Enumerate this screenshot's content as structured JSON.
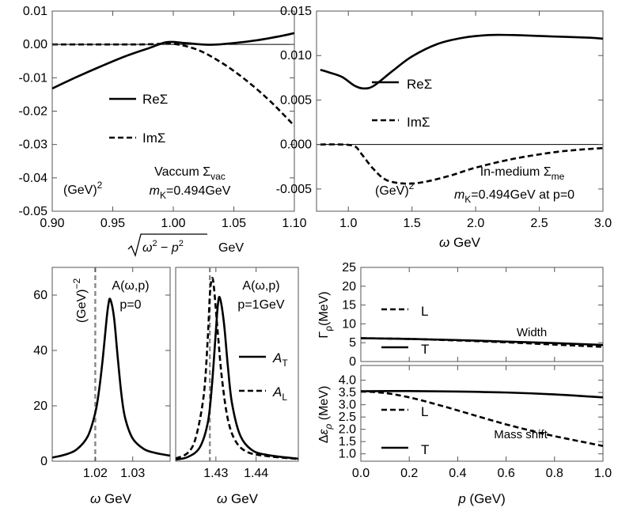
{
  "chart_data": [
    {
      "id": "vac",
      "type": "line",
      "xlim": [
        0.9,
        1.1
      ],
      "ylim": [
        -0.05,
        0.01
      ],
      "xticks": [
        "0.90",
        "0.95",
        "1.00",
        "1.05",
        "1.10"
      ],
      "xtick_values": [
        0.9,
        0.95,
        1.0,
        1.05,
        1.1
      ],
      "yticks": [
        "0.01",
        "0.00",
        "-0.01",
        "-0.02",
        "-0.03",
        "-0.04",
        "-0.05"
      ],
      "ytick_values": [
        0.01,
        0.0,
        -0.01,
        -0.02,
        -0.03,
        -0.04,
        -0.05
      ],
      "xlabel": "√(ω² − p²) GeV",
      "unit": "(GeV)²",
      "title": "Vaccum Σvac",
      "subtitle": "mK=0.494GeV",
      "legend": [
        "ReΣ",
        "ImΣ"
      ],
      "series": [
        {
          "name": "ReΣ",
          "style": "solid",
          "x": [
            0.9,
            0.92,
            0.94,
            0.96,
            0.98,
            0.995,
            1.01,
            1.03,
            1.05,
            1.07,
            1.09,
            1.1
          ],
          "y": [
            -0.0132,
            -0.0098,
            -0.0066,
            -0.0036,
            -0.0011,
            0.0007,
            0.0004,
            -0.0001,
            0.0004,
            0.0013,
            0.0026,
            0.0034
          ]
        },
        {
          "name": "ImΣ",
          "style": "dashed",
          "x": [
            0.9,
            0.94,
            0.97,
            0.985,
            1.0,
            1.02,
            1.04,
            1.06,
            1.08,
            1.1
          ],
          "y": [
            0.0,
            0.0,
            0.0,
            0.0001,
            0.0002,
            -0.0016,
            -0.0055,
            -0.0107,
            -0.017,
            -0.0244
          ]
        }
      ]
    },
    {
      "id": "me",
      "type": "line",
      "xlim": [
        0.75,
        3.0
      ],
      "ylim": [
        -0.0075,
        0.015
      ],
      "xticks": [
        "1.0",
        "1.5",
        "2.0",
        "2.5",
        "3.0"
      ],
      "xtick_values": [
        1.0,
        1.5,
        2.0,
        2.5,
        3.0
      ],
      "yticks": [
        "0.015",
        "0.010",
        "0.005",
        "0.000",
        "-0.005"
      ],
      "ytick_values": [
        0.015,
        0.01,
        0.005,
        0.0,
        -0.005
      ],
      "xlabel": "ω GeV",
      "unit": "(GeV)²",
      "title": "In-medium Σme",
      "subtitle": "mK=0.494GeV at p=0",
      "legend": [
        "ReΣ",
        "ImΣ"
      ],
      "series": [
        {
          "name": "ReΣ",
          "style": "solid",
          "x": [
            0.78,
            0.85,
            0.95,
            1.05,
            1.12,
            1.2,
            1.35,
            1.5,
            1.7,
            1.9,
            2.1,
            2.3,
            2.5,
            2.7,
            2.9,
            3.0
          ],
          "y": [
            0.0084,
            0.0081,
            0.0076,
            0.0066,
            0.0063,
            0.0066,
            0.0083,
            0.0099,
            0.0113,
            0.012,
            0.0123,
            0.0123,
            0.0122,
            0.0121,
            0.012,
            0.0119
          ]
        },
        {
          "name": "ImΣ",
          "style": "dashed",
          "x": [
            0.78,
            0.95,
            1.05,
            1.1,
            1.2,
            1.3,
            1.45,
            1.6,
            1.8,
            2.0,
            2.3,
            2.6,
            2.8,
            3.0
          ],
          "y": [
            0.0,
            0.0,
            -0.0002,
            -0.001,
            -0.0028,
            -0.004,
            -0.0044,
            -0.0042,
            -0.0035,
            -0.0026,
            -0.0016,
            -0.0009,
            -0.0006,
            -0.0004
          ]
        }
      ]
    },
    {
      "id": "a0",
      "type": "line",
      "xlim": [
        1.0085,
        1.04
      ],
      "ylim": [
        0,
        70
      ],
      "xticks": [
        "1.02",
        "1.03"
      ],
      "xtick_values": [
        1.02,
        1.03
      ],
      "yticks": [
        "0",
        "20",
        "40",
        "60"
      ],
      "ytick_values": [
        0,
        20,
        40,
        60
      ],
      "xlabel": "ω GeV",
      "unit": "(GeV)⁻²",
      "title": "A(ω,p)",
      "subtitle": "p=0",
      "vline": 1.02,
      "series": [
        {
          "name": "A",
          "style": "solid",
          "x": [
            1.0085,
            1.012,
            1.015,
            1.018,
            1.02,
            1.021,
            1.022,
            1.023,
            1.0235,
            1.024,
            1.025,
            1.026,
            1.027,
            1.028,
            1.03,
            1.033,
            1.036,
            1.04
          ],
          "y": [
            1.3,
            2.4,
            4.2,
            9.0,
            17.5,
            25.5,
            37.0,
            51.0,
            56.5,
            58.5,
            52.0,
            37.5,
            24.0,
            15.5,
            8.2,
            4.4,
            3.0,
            2.0
          ]
        }
      ]
    },
    {
      "id": "a1",
      "type": "line",
      "xlim": [
        1.42,
        1.4505
      ],
      "ylim": [
        0,
        70
      ],
      "xticks": [
        "1.43",
        "1.44"
      ],
      "xtick_values": [
        1.43,
        1.44
      ],
      "xlabel": "ω GeV",
      "title": "A(ω,p)",
      "subtitle": "p=1GeV",
      "vline": 1.4285,
      "legend": [
        "AT",
        "AL"
      ],
      "series": [
        {
          "name": "AT",
          "style": "solid",
          "x": [
            1.42,
            1.423,
            1.426,
            1.428,
            1.429,
            1.43,
            1.4305,
            1.431,
            1.432,
            1.433,
            1.434,
            1.436,
            1.439,
            1.443,
            1.4505
          ],
          "y": [
            0.6,
            1.5,
            5.0,
            14.0,
            27.0,
            47.0,
            56.5,
            59.0,
            50.0,
            34.0,
            21.0,
            9.5,
            4.0,
            2.2,
            0.9
          ]
        },
        {
          "name": "AL",
          "style": "dashed",
          "x": [
            1.42,
            1.423,
            1.425,
            1.427,
            1.428,
            1.4285,
            1.429,
            1.4295,
            1.4305,
            1.4315,
            1.433,
            1.435,
            1.438,
            1.443,
            1.4505
          ],
          "y": [
            1.0,
            3.0,
            8.5,
            24.0,
            45.0,
            60.0,
            66.0,
            63.0,
            46.0,
            30.0,
            15.0,
            7.0,
            3.2,
            1.8,
            0.8
          ]
        }
      ]
    },
    {
      "id": "width",
      "type": "line",
      "xlim": [
        0,
        1
      ],
      "ylim": [
        0,
        25
      ],
      "yticks": [
        "0",
        "5",
        "10",
        "15",
        "20",
        "25"
      ],
      "ytick_values": [
        0,
        5,
        10,
        15,
        20,
        25
      ],
      "ylabel": "Γρ(MeV)",
      "annotation": "Width",
      "legend": [
        "L",
        "T"
      ],
      "series": [
        {
          "name": "L",
          "style": "dashed",
          "x": [
            0,
            0.2,
            0.4,
            0.6,
            0.8,
            1.0
          ],
          "y": [
            6.2,
            6.0,
            5.6,
            5.1,
            4.5,
            3.9
          ]
        },
        {
          "name": "T",
          "style": "solid",
          "x": [
            0,
            0.2,
            0.4,
            0.6,
            0.8,
            1.0
          ],
          "y": [
            6.2,
            6.0,
            5.7,
            5.3,
            4.9,
            4.4
          ]
        }
      ]
    },
    {
      "id": "shift",
      "type": "line",
      "xlim": [
        0,
        1
      ],
      "ylim": [
        0.7,
        4.6
      ],
      "xticks": [
        "0.0",
        "0.2",
        "0.4",
        "0.6",
        "0.8",
        "1.0"
      ],
      "xtick_values": [
        0,
        0.2,
        0.4,
        0.6,
        0.8,
        1.0
      ],
      "yticks": [
        "1.0",
        "1.5",
        "2.0",
        "2.5",
        "3.0",
        "3.5",
        "4.0"
      ],
      "ytick_values": [
        1.0,
        1.5,
        2.0,
        2.5,
        3.0,
        3.5,
        4.0
      ],
      "ylabel": "Δερ (MeV)",
      "xlabel": "p (GeV)",
      "annotation": "Mass shift",
      "legend": [
        "L",
        "T"
      ],
      "series": [
        {
          "name": "L",
          "style": "dashed",
          "x": [
            0,
            0.1,
            0.2,
            0.3,
            0.4,
            0.5,
            0.6,
            0.7,
            0.8,
            0.9,
            1.0
          ],
          "y": [
            3.55,
            3.48,
            3.3,
            3.05,
            2.77,
            2.48,
            2.2,
            1.95,
            1.72,
            1.52,
            1.32
          ]
        },
        {
          "name": "T",
          "style": "solid",
          "x": [
            0,
            0.2,
            0.4,
            0.6,
            0.8,
            1.0
          ],
          "y": [
            3.55,
            3.56,
            3.54,
            3.5,
            3.42,
            3.3
          ]
        }
      ]
    }
  ]
}
